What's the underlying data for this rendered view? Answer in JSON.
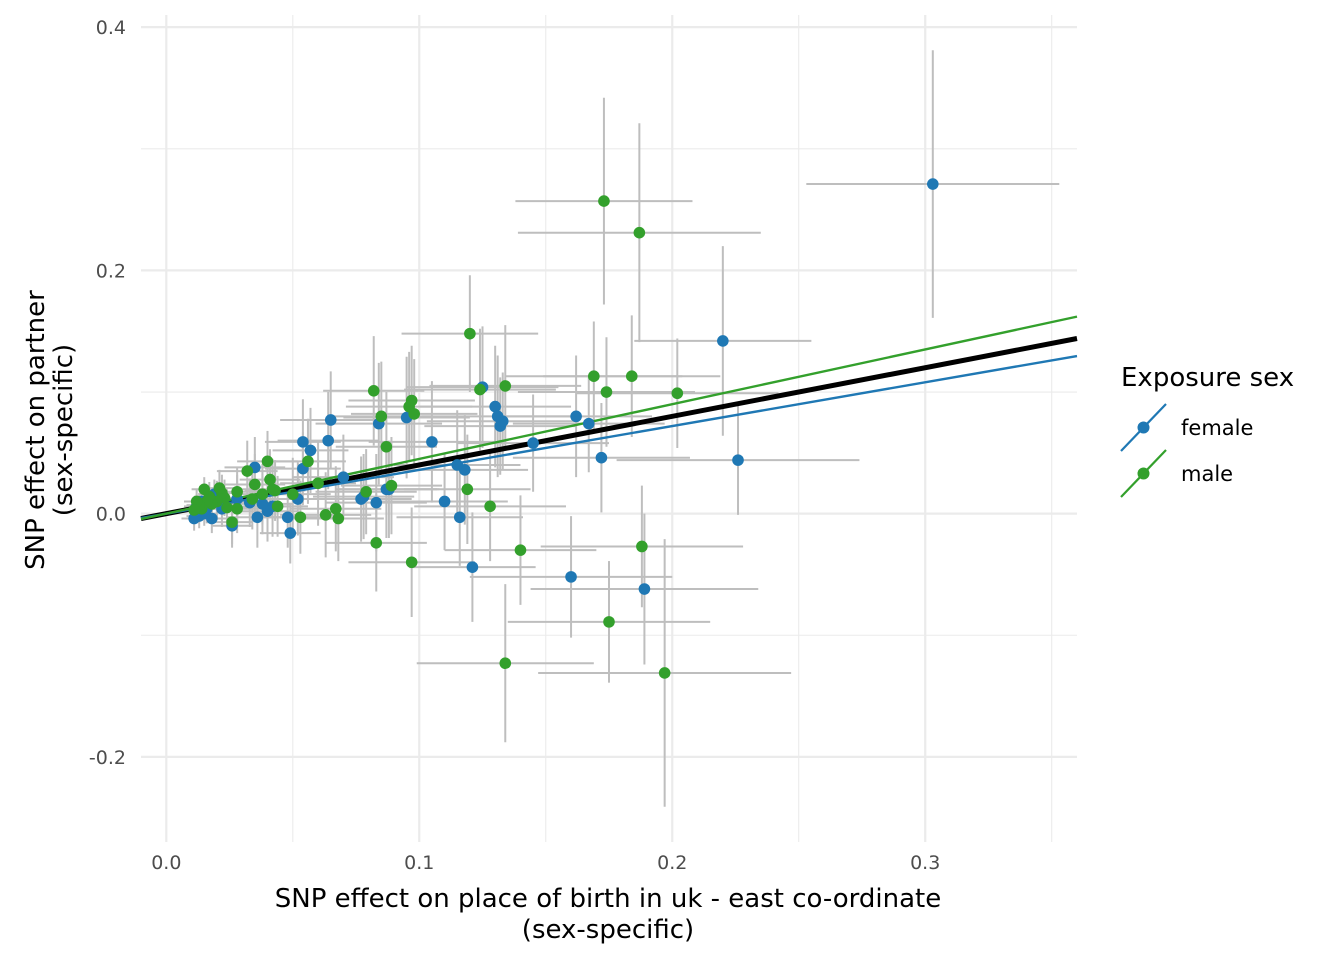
{
  "chart_data": {
    "type": "scatter",
    "title": "",
    "xlabel_lines": [
      "SNP effect on place of birth in uk - east co-ordinate",
      "(sex-specific)"
    ],
    "ylabel_lines": [
      "SNP effect on partner",
      "(sex-specific)"
    ],
    "xlim": [
      -0.01,
      0.36
    ],
    "ylim": [
      -0.27,
      0.41
    ],
    "x_ticks": [
      0.0,
      0.1,
      0.2,
      0.3
    ],
    "x_tick_labels": [
      "0.0",
      "0.1",
      "0.2",
      "0.3"
    ],
    "y_ticks": [
      -0.2,
      0.0,
      0.2,
      0.4
    ],
    "y_tick_labels": [
      "-0.2",
      "0.0",
      "0.2",
      "0.4"
    ],
    "grid": true,
    "error_bar_color": "#bebebe",
    "legend": {
      "title": "Exposure sex",
      "position": "right",
      "entries": [
        {
          "label": "female",
          "color": "#1f78b4"
        },
        {
          "label": "male",
          "color": "#33a02c"
        }
      ]
    },
    "regression_lines": [
      {
        "name": "overall",
        "color": "#000000",
        "slope": 0.4,
        "intercept": 0.0
      },
      {
        "name": "female",
        "color": "#1f78b4",
        "slope": 0.36,
        "intercept": 0.0
      },
      {
        "name": "male",
        "color": "#33a02c",
        "slope": 0.45,
        "intercept": 0.0
      }
    ],
    "series": [
      {
        "name": "female",
        "color": "#1f78b4",
        "points": [
          {
            "x": 0.303,
            "y": 0.271,
            "xerr": 0.05,
            "yerr": 0.11
          },
          {
            "x": 0.22,
            "y": 0.142,
            "xerr": 0.035,
            "yerr": 0.078
          },
          {
            "x": 0.226,
            "y": 0.044,
            "xerr": 0.048,
            "yerr": 0.045
          },
          {
            "x": 0.189,
            "y": -0.062,
            "xerr": 0.045,
            "yerr": 0.062
          },
          {
            "x": 0.16,
            "y": -0.052,
            "xerr": 0.04,
            "yerr": 0.05
          },
          {
            "x": 0.172,
            "y": 0.046,
            "xerr": 0.035,
            "yerr": 0.045
          },
          {
            "x": 0.162,
            "y": 0.08,
            "xerr": 0.03,
            "yerr": 0.05
          },
          {
            "x": 0.167,
            "y": 0.074,
            "xerr": 0.03,
            "yerr": 0.04
          },
          {
            "x": 0.145,
            "y": 0.058,
            "xerr": 0.03,
            "yerr": 0.04
          },
          {
            "x": 0.125,
            "y": 0.104,
            "xerr": 0.03,
            "yerr": 0.05
          },
          {
            "x": 0.13,
            "y": 0.088,
            "xerr": 0.03,
            "yerr": 0.05
          },
          {
            "x": 0.132,
            "y": 0.072,
            "xerr": 0.03,
            "yerr": 0.04
          },
          {
            "x": 0.133,
            "y": 0.076,
            "xerr": 0.03,
            "yerr": 0.04
          },
          {
            "x": 0.131,
            "y": 0.08,
            "xerr": 0.03,
            "yerr": 0.05
          },
          {
            "x": 0.121,
            "y": -0.044,
            "xerr": 0.025,
            "yerr": 0.045
          },
          {
            "x": 0.116,
            "y": -0.003,
            "xerr": 0.025,
            "yerr": 0.04
          },
          {
            "x": 0.11,
            "y": 0.01,
            "xerr": 0.025,
            "yerr": 0.04
          },
          {
            "x": 0.105,
            "y": 0.059,
            "xerr": 0.025,
            "yerr": 0.05
          },
          {
            "x": 0.118,
            "y": 0.036,
            "xerr": 0.025,
            "yerr": 0.045
          },
          {
            "x": 0.115,
            "y": 0.04,
            "xerr": 0.025,
            "yerr": 0.045
          },
          {
            "x": 0.095,
            "y": 0.079,
            "xerr": 0.025,
            "yerr": 0.05
          },
          {
            "x": 0.084,
            "y": 0.074,
            "xerr": 0.025,
            "yerr": 0.05
          },
          {
            "x": 0.088,
            "y": 0.02,
            "xerr": 0.02,
            "yerr": 0.04
          },
          {
            "x": 0.087,
            "y": 0.02,
            "xerr": 0.02,
            "yerr": 0.04
          },
          {
            "x": 0.083,
            "y": 0.009,
            "xerr": 0.02,
            "yerr": 0.04
          },
          {
            "x": 0.078,
            "y": 0.014,
            "xerr": 0.02,
            "yerr": 0.035
          },
          {
            "x": 0.077,
            "y": 0.012,
            "xerr": 0.02,
            "yerr": 0.035
          },
          {
            "x": 0.065,
            "y": 0.077,
            "xerr": 0.02,
            "yerr": 0.04
          },
          {
            "x": 0.064,
            "y": 0.06,
            "xerr": 0.02,
            "yerr": 0.04
          },
          {
            "x": 0.07,
            "y": 0.03,
            "xerr": 0.02,
            "yerr": 0.035
          },
          {
            "x": 0.057,
            "y": 0.052,
            "xerr": 0.015,
            "yerr": 0.035
          },
          {
            "x": 0.054,
            "y": 0.059,
            "xerr": 0.015,
            "yerr": 0.035
          },
          {
            "x": 0.054,
            "y": 0.037,
            "xerr": 0.015,
            "yerr": 0.03
          },
          {
            "x": 0.052,
            "y": 0.012,
            "xerr": 0.015,
            "yerr": 0.03
          },
          {
            "x": 0.049,
            "y": -0.016,
            "xerr": 0.012,
            "yerr": 0.025
          },
          {
            "x": 0.048,
            "y": -0.003,
            "xerr": 0.012,
            "yerr": 0.025
          },
          {
            "x": 0.042,
            "y": 0.006,
            "xerr": 0.012,
            "yerr": 0.025
          },
          {
            "x": 0.04,
            "y": 0.002,
            "xerr": 0.012,
            "yerr": 0.025
          },
          {
            "x": 0.038,
            "y": 0.008,
            "xerr": 0.012,
            "yerr": 0.025
          },
          {
            "x": 0.036,
            "y": -0.003,
            "xerr": 0.012,
            "yerr": 0.025
          },
          {
            "x": 0.035,
            "y": 0.038,
            "xerr": 0.012,
            "yerr": 0.025
          },
          {
            "x": 0.033,
            "y": 0.009,
            "xerr": 0.01,
            "yerr": 0.02
          },
          {
            "x": 0.028,
            "y": 0.012,
            "xerr": 0.01,
            "yerr": 0.02
          },
          {
            "x": 0.026,
            "y": -0.01,
            "xerr": 0.008,
            "yerr": 0.018
          },
          {
            "x": 0.022,
            "y": 0.004,
            "xerr": 0.008,
            "yerr": 0.015
          },
          {
            "x": 0.02,
            "y": 0.012,
            "xerr": 0.008,
            "yerr": 0.015
          },
          {
            "x": 0.019,
            "y": 0.016,
            "xerr": 0.006,
            "yerr": 0.012
          },
          {
            "x": 0.018,
            "y": -0.004,
            "xerr": 0.006,
            "yerr": 0.012
          },
          {
            "x": 0.017,
            "y": 0.008,
            "xerr": 0.006,
            "yerr": 0.012
          },
          {
            "x": 0.016,
            "y": 0.004,
            "xerr": 0.006,
            "yerr": 0.012
          },
          {
            "x": 0.015,
            "y": 0.0,
            "xerr": 0.005,
            "yerr": 0.01
          },
          {
            "x": 0.014,
            "y": 0.01,
            "xerr": 0.005,
            "yerr": 0.01
          },
          {
            "x": 0.013,
            "y": -0.002,
            "xerr": 0.005,
            "yerr": 0.01
          },
          {
            "x": 0.012,
            "y": 0.006,
            "xerr": 0.005,
            "yerr": 0.01
          },
          {
            "x": 0.011,
            "y": -0.004,
            "xerr": 0.005,
            "yerr": 0.01
          },
          {
            "x": 0.012,
            "y": 0.002,
            "xerr": 0.005,
            "yerr": 0.01
          }
        ]
      },
      {
        "name": "male",
        "color": "#33a02c",
        "points": [
          {
            "x": 0.173,
            "y": 0.257,
            "xerr": 0.035,
            "yerr": 0.085
          },
          {
            "x": 0.187,
            "y": 0.231,
            "xerr": 0.048,
            "yerr": 0.09
          },
          {
            "x": 0.12,
            "y": 0.148,
            "xerr": 0.027,
            "yerr": 0.048
          },
          {
            "x": 0.169,
            "y": 0.113,
            "xerr": 0.035,
            "yerr": 0.045
          },
          {
            "x": 0.184,
            "y": 0.113,
            "xerr": 0.035,
            "yerr": 0.05
          },
          {
            "x": 0.174,
            "y": 0.1,
            "xerr": 0.035,
            "yerr": 0.045
          },
          {
            "x": 0.202,
            "y": 0.099,
            "xerr": 0.04,
            "yerr": 0.045
          },
          {
            "x": 0.134,
            "y": 0.105,
            "xerr": 0.03,
            "yerr": 0.05
          },
          {
            "x": 0.124,
            "y": 0.102,
            "xerr": 0.03,
            "yerr": 0.05
          },
          {
            "x": 0.082,
            "y": 0.101,
            "xerr": 0.02,
            "yerr": 0.045
          },
          {
            "x": 0.097,
            "y": 0.093,
            "xerr": 0.025,
            "yerr": 0.045
          },
          {
            "x": 0.096,
            "y": 0.088,
            "xerr": 0.025,
            "yerr": 0.045
          },
          {
            "x": 0.098,
            "y": 0.082,
            "xerr": 0.025,
            "yerr": 0.045
          },
          {
            "x": 0.085,
            "y": 0.08,
            "xerr": 0.02,
            "yerr": 0.045
          },
          {
            "x": 0.087,
            "y": 0.055,
            "xerr": 0.02,
            "yerr": 0.045
          },
          {
            "x": 0.089,
            "y": 0.023,
            "xerr": 0.02,
            "yerr": 0.04
          },
          {
            "x": 0.079,
            "y": 0.018,
            "xerr": 0.02,
            "yerr": 0.035
          },
          {
            "x": 0.083,
            "y": -0.024,
            "xerr": 0.02,
            "yerr": 0.04
          },
          {
            "x": 0.097,
            "y": -0.04,
            "xerr": 0.025,
            "yerr": 0.045
          },
          {
            "x": 0.119,
            "y": 0.02,
            "xerr": 0.025,
            "yerr": 0.045
          },
          {
            "x": 0.128,
            "y": 0.006,
            "xerr": 0.03,
            "yerr": 0.045
          },
          {
            "x": 0.14,
            "y": -0.03,
            "xerr": 0.03,
            "yerr": 0.045
          },
          {
            "x": 0.134,
            "y": -0.123,
            "xerr": 0.035,
            "yerr": 0.065
          },
          {
            "x": 0.175,
            "y": -0.089,
            "xerr": 0.04,
            "yerr": 0.05
          },
          {
            "x": 0.188,
            "y": -0.027,
            "xerr": 0.04,
            "yerr": 0.05
          },
          {
            "x": 0.197,
            "y": -0.131,
            "xerr": 0.05,
            "yerr": 0.11
          },
          {
            "x": 0.068,
            "y": -0.004,
            "xerr": 0.018,
            "yerr": 0.035
          },
          {
            "x": 0.067,
            "y": 0.004,
            "xerr": 0.018,
            "yerr": 0.035
          },
          {
            "x": 0.063,
            "y": -0.001,
            "xerr": 0.018,
            "yerr": 0.035
          },
          {
            "x": 0.06,
            "y": 0.025,
            "xerr": 0.015,
            "yerr": 0.035
          },
          {
            "x": 0.056,
            "y": 0.043,
            "xerr": 0.015,
            "yerr": 0.035
          },
          {
            "x": 0.053,
            "y": -0.003,
            "xerr": 0.015,
            "yerr": 0.03
          },
          {
            "x": 0.05,
            "y": 0.016,
            "xerr": 0.015,
            "yerr": 0.03
          },
          {
            "x": 0.044,
            "y": 0.006,
            "xerr": 0.012,
            "yerr": 0.025
          },
          {
            "x": 0.043,
            "y": 0.019,
            "xerr": 0.012,
            "yerr": 0.025
          },
          {
            "x": 0.042,
            "y": 0.02,
            "xerr": 0.012,
            "yerr": 0.025
          },
          {
            "x": 0.041,
            "y": 0.028,
            "xerr": 0.012,
            "yerr": 0.025
          },
          {
            "x": 0.04,
            "y": 0.043,
            "xerr": 0.012,
            "yerr": 0.025
          },
          {
            "x": 0.038,
            "y": 0.016,
            "xerr": 0.012,
            "yerr": 0.025
          },
          {
            "x": 0.035,
            "y": 0.024,
            "xerr": 0.012,
            "yerr": 0.025
          },
          {
            "x": 0.034,
            "y": 0.012,
            "xerr": 0.012,
            "yerr": 0.025
          },
          {
            "x": 0.032,
            "y": 0.035,
            "xerr": 0.012,
            "yerr": 0.025
          },
          {
            "x": 0.028,
            "y": 0.018,
            "xerr": 0.01,
            "yerr": 0.02
          },
          {
            "x": 0.028,
            "y": 0.004,
            "xerr": 0.01,
            "yerr": 0.02
          },
          {
            "x": 0.026,
            "y": -0.007,
            "xerr": 0.008,
            "yerr": 0.018
          },
          {
            "x": 0.024,
            "y": 0.005,
            "xerr": 0.008,
            "yerr": 0.015
          },
          {
            "x": 0.023,
            "y": 0.013,
            "xerr": 0.008,
            "yerr": 0.015
          },
          {
            "x": 0.022,
            "y": 0.017,
            "xerr": 0.008,
            "yerr": 0.015
          },
          {
            "x": 0.021,
            "y": 0.021,
            "xerr": 0.008,
            "yerr": 0.015
          },
          {
            "x": 0.02,
            "y": 0.01,
            "xerr": 0.008,
            "yerr": 0.015
          },
          {
            "x": 0.018,
            "y": 0.008,
            "xerr": 0.006,
            "yerr": 0.012
          },
          {
            "x": 0.017,
            "y": 0.014,
            "xerr": 0.006,
            "yerr": 0.012
          },
          {
            "x": 0.016,
            "y": 0.01,
            "xerr": 0.006,
            "yerr": 0.012
          },
          {
            "x": 0.015,
            "y": 0.02,
            "xerr": 0.005,
            "yerr": 0.01
          },
          {
            "x": 0.014,
            "y": 0.004,
            "xerr": 0.005,
            "yerr": 0.01
          },
          {
            "x": 0.013,
            "y": 0.007,
            "xerr": 0.005,
            "yerr": 0.01
          },
          {
            "x": 0.012,
            "y": 0.01,
            "xerr": 0.005,
            "yerr": 0.01
          },
          {
            "x": 0.011,
            "y": 0.003,
            "xerr": 0.005,
            "yerr": 0.01
          }
        ]
      }
    ]
  }
}
